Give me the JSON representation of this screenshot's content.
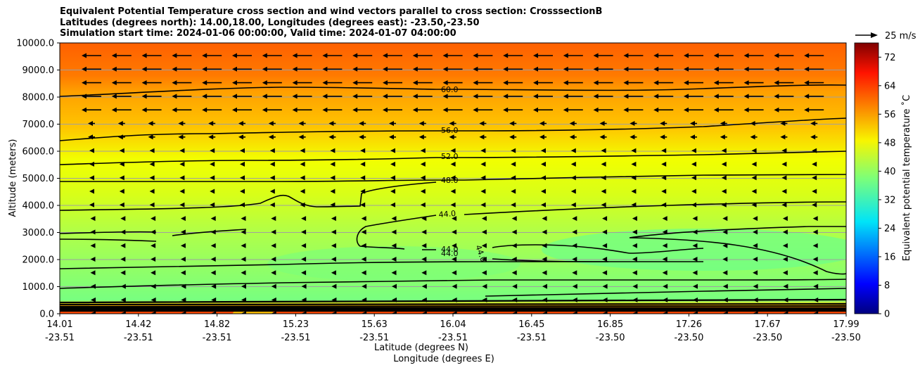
{
  "chart_data": {
    "type": "contour",
    "title_lines": [
      "Equivalent Potential Temperature cross section and wind vectors parallel to cross section: CrosssectionB",
      "Latitudes (degrees north): 14.00,18.00, Longitudes (degrees east): -23.50,-23.50",
      "Simulation start time: 2024-01-06 00:00:00, Valid time: 2024-01-07 04:00:00"
    ],
    "xlabel_lat": "Latitude (degrees N)",
    "xlabel_lon": "Longitude (degrees E)",
    "ylabel": "Altitude (meters)",
    "ylim": [
      0,
      10000
    ],
    "xlim": [
      14.01,
      17.99
    ],
    "yticks": [
      "0.0",
      "1000.0",
      "2000.0",
      "3000.0",
      "4000.0",
      "5000.0",
      "6000.0",
      "7000.0",
      "8000.0",
      "9000.0",
      "10000.0"
    ],
    "xticks": [
      {
        "lat": "14.01",
        "lon": "-23.51"
      },
      {
        "lat": "14.42",
        "lon": "-23.51"
      },
      {
        "lat": "14.82",
        "lon": "-23.51"
      },
      {
        "lat": "15.23",
        "lon": "-23.51"
      },
      {
        "lat": "15.63",
        "lon": "-23.51"
      },
      {
        "lat": "16.04",
        "lon": "-23.51"
      },
      {
        "lat": "16.45",
        "lon": "-23.51"
      },
      {
        "lat": "16.85",
        "lon": "-23.50"
      },
      {
        "lat": "17.26",
        "lon": "-23.50"
      },
      {
        "lat": "17.67",
        "lon": "-23.50"
      },
      {
        "lat": "17.99",
        "lon": "-23.50"
      }
    ],
    "colorbar": {
      "label": "Equivalent potential temperature $^\\circ$C",
      "label_display": "Equivalent potential temperature ˚C",
      "range": [
        0,
        76
      ],
      "ticks": [
        "0",
        "8",
        "16",
        "24",
        "32",
        "40",
        "48",
        "56",
        "64",
        "72"
      ]
    },
    "quiver_key": "25 m/s",
    "contour_labels": [
      {
        "text": "60.0",
        "z": 8200
      },
      {
        "text": "56.0",
        "z": 6800
      },
      {
        "text": "52.0",
        "z": 5850
      },
      {
        "text": "48.0",
        "z": 4850
      },
      {
        "text": "44.0",
        "z": 3700
      },
      {
        "text": "44.0",
        "z": 2350
      },
      {
        "text": "44.0",
        "z": 2200
      },
      {
        "text": "44.0",
        "z": 2300
      }
    ],
    "theta_e_profile": [
      {
        "z": 10000,
        "v": 62
      },
      {
        "z": 9000,
        "v": 61
      },
      {
        "z": 8300,
        "v": 60
      },
      {
        "z": 7600,
        "v": 58
      },
      {
        "z": 6900,
        "v": 56
      },
      {
        "z": 6000,
        "v": 53
      },
      {
        "z": 5500,
        "v": 51
      },
      {
        "z": 4900,
        "v": 48
      },
      {
        "z": 4000,
        "v": 46
      },
      {
        "z": 3000,
        "v": 44
      },
      {
        "z": 2000,
        "v": 43
      },
      {
        "z": 1000,
        "v": 41
      },
      {
        "z": 400,
        "v": 40
      },
      {
        "z": 250,
        "v": 52
      },
      {
        "z": 0,
        "v": 62
      }
    ]
  }
}
